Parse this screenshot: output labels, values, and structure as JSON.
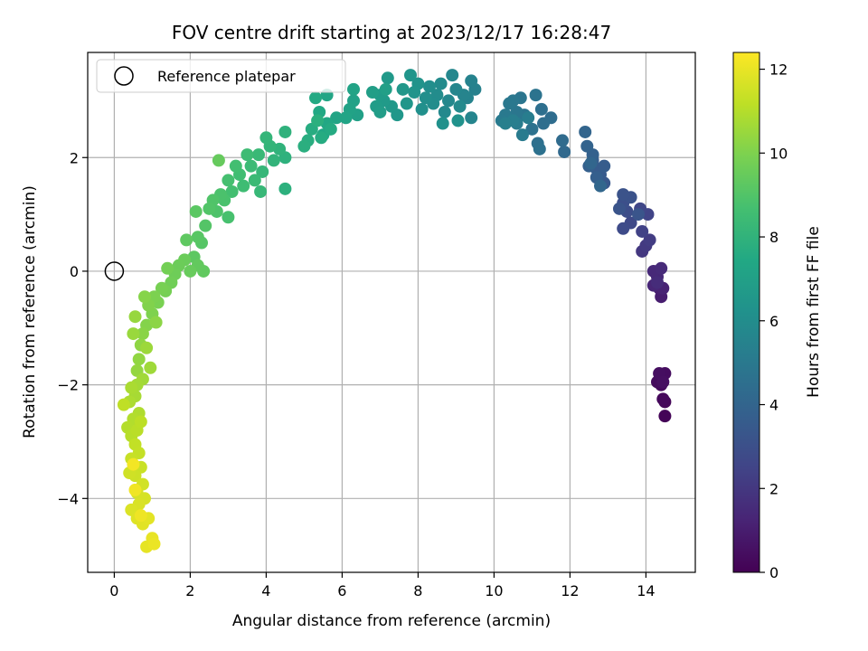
{
  "chart_data": {
    "type": "scatter",
    "title": "FOV centre drift starting at 2023/12/17 16:28:47",
    "xlabel": "Angular distance from reference (arcmin)",
    "ylabel": "Rotation from reference (arcmin)",
    "xlim": [
      -0.7,
      15.3
    ],
    "ylim": [
      -5.3,
      3.85
    ],
    "xticks": [
      0,
      2,
      4,
      6,
      8,
      10,
      12,
      14
    ],
    "yticks": [
      -4,
      -2,
      0,
      2
    ],
    "x_tick_labels": [
      "0",
      "2",
      "4",
      "6",
      "8",
      "10",
      "12",
      "14"
    ],
    "y_tick_labels": [
      "−4",
      "−2",
      "0",
      "2"
    ],
    "grid": true,
    "legend": {
      "position": "top-left",
      "label": "Reference platepar"
    },
    "reference_point": {
      "x": 0,
      "y": 0
    },
    "colorbar": {
      "label": "Hours from first FF file",
      "range": [
        0,
        12.4
      ],
      "ticks": [
        0,
        2,
        4,
        6,
        8,
        10,
        12
      ],
      "tick_labels": [
        "0",
        "2",
        "4",
        "6",
        "8",
        "10",
        "12"
      ],
      "colormap": "viridis"
    },
    "points": [
      {
        "x": 14.5,
        "y": -2.55,
        "t": 0.1
      },
      {
        "x": 14.5,
        "y": -2.3,
        "t": 0.2
      },
      {
        "x": 14.45,
        "y": -2.25,
        "t": 0.25
      },
      {
        "x": 14.4,
        "y": -2.0,
        "t": 0.3
      },
      {
        "x": 14.3,
        "y": -1.95,
        "t": 0.35
      },
      {
        "x": 14.5,
        "y": -1.8,
        "t": 0.4
      },
      {
        "x": 14.35,
        "y": -1.8,
        "t": 0.45
      },
      {
        "x": 14.45,
        "y": -1.95,
        "t": 0.5
      },
      {
        "x": 14.4,
        "y": -0.45,
        "t": 1.0
      },
      {
        "x": 14.35,
        "y": -0.3,
        "t": 1.1
      },
      {
        "x": 14.45,
        "y": -0.3,
        "t": 1.2
      },
      {
        "x": 14.2,
        "y": -0.25,
        "t": 1.3
      },
      {
        "x": 14.3,
        "y": -0.1,
        "t": 1.4
      },
      {
        "x": 14.2,
        "y": 0.0,
        "t": 1.45
      },
      {
        "x": 14.4,
        "y": 0.05,
        "t": 1.5
      },
      {
        "x": 14.3,
        "y": -0.2,
        "t": 1.55
      },
      {
        "x": 13.9,
        "y": 0.35,
        "t": 2.0
      },
      {
        "x": 14.0,
        "y": 0.45,
        "t": 2.1
      },
      {
        "x": 14.1,
        "y": 0.55,
        "t": 2.2
      },
      {
        "x": 13.9,
        "y": 0.7,
        "t": 2.4
      },
      {
        "x": 14.05,
        "y": 1.0,
        "t": 2.5
      },
      {
        "x": 13.85,
        "y": 1.1,
        "t": 2.6
      },
      {
        "x": 13.6,
        "y": 0.85,
        "t": 2.7
      },
      {
        "x": 13.4,
        "y": 0.75,
        "t": 2.8
      },
      {
        "x": 13.5,
        "y": 1.05,
        "t": 2.9
      },
      {
        "x": 13.4,
        "y": 1.2,
        "t": 3.0
      },
      {
        "x": 13.6,
        "y": 1.3,
        "t": 3.1
      },
      {
        "x": 13.4,
        "y": 1.35,
        "t": 3.15
      },
      {
        "x": 13.3,
        "y": 1.1,
        "t": 3.2
      },
      {
        "x": 13.8,
        "y": 1.0,
        "t": 3.25
      },
      {
        "x": 12.9,
        "y": 1.55,
        "t": 3.4
      },
      {
        "x": 12.8,
        "y": 1.7,
        "t": 3.5
      },
      {
        "x": 12.7,
        "y": 1.8,
        "t": 3.55
      },
      {
        "x": 12.9,
        "y": 1.85,
        "t": 3.6
      },
      {
        "x": 12.6,
        "y": 1.95,
        "t": 3.65
      },
      {
        "x": 12.7,
        "y": 1.65,
        "t": 3.7
      },
      {
        "x": 12.5,
        "y": 1.85,
        "t": 3.75
      },
      {
        "x": 12.6,
        "y": 2.05,
        "t": 3.8
      },
      {
        "x": 12.45,
        "y": 2.2,
        "t": 3.9
      },
      {
        "x": 12.4,
        "y": 2.45,
        "t": 4.0
      },
      {
        "x": 12.55,
        "y": 1.9,
        "t": 4.05
      },
      {
        "x": 12.8,
        "y": 1.5,
        "t": 4.1
      },
      {
        "x": 11.85,
        "y": 2.1,
        "t": 4.2
      },
      {
        "x": 11.8,
        "y": 2.3,
        "t": 4.3
      },
      {
        "x": 11.5,
        "y": 2.7,
        "t": 4.4
      },
      {
        "x": 11.3,
        "y": 2.6,
        "t": 4.45
      },
      {
        "x": 11.25,
        "y": 2.85,
        "t": 4.5
      },
      {
        "x": 11.15,
        "y": 2.25,
        "t": 4.55
      },
      {
        "x": 11.2,
        "y": 2.15,
        "t": 4.6
      },
      {
        "x": 11.0,
        "y": 2.5,
        "t": 4.65
      },
      {
        "x": 11.1,
        "y": 3.1,
        "t": 4.7
      },
      {
        "x": 10.8,
        "y": 2.75,
        "t": 4.75
      },
      {
        "x": 10.7,
        "y": 3.05,
        "t": 4.8
      },
      {
        "x": 10.6,
        "y": 2.8,
        "t": 4.85
      },
      {
        "x": 10.5,
        "y": 3.0,
        "t": 4.9
      },
      {
        "x": 10.4,
        "y": 2.95,
        "t": 4.95
      },
      {
        "x": 10.3,
        "y": 2.75,
        "t": 5.0
      },
      {
        "x": 10.2,
        "y": 2.65,
        "t": 5.05
      },
      {
        "x": 10.75,
        "y": 2.4,
        "t": 5.1
      },
      {
        "x": 10.6,
        "y": 2.6,
        "t": 5.15
      },
      {
        "x": 10.9,
        "y": 2.7,
        "t": 5.2
      },
      {
        "x": 10.5,
        "y": 2.65,
        "t": 5.25
      },
      {
        "x": 10.3,
        "y": 2.6,
        "t": 5.3
      },
      {
        "x": 9.5,
        "y": 3.2,
        "t": 5.4
      },
      {
        "x": 9.4,
        "y": 3.35,
        "t": 5.45
      },
      {
        "x": 9.3,
        "y": 3.05,
        "t": 5.5
      },
      {
        "x": 9.2,
        "y": 3.1,
        "t": 5.55
      },
      {
        "x": 9.4,
        "y": 2.7,
        "t": 5.6
      },
      {
        "x": 9.0,
        "y": 3.2,
        "t": 5.65
      },
      {
        "x": 8.9,
        "y": 3.45,
        "t": 5.7
      },
      {
        "x": 8.8,
        "y": 3.0,
        "t": 5.75
      },
      {
        "x": 8.7,
        "y": 2.8,
        "t": 5.8
      },
      {
        "x": 9.1,
        "y": 2.9,
        "t": 5.85
      },
      {
        "x": 8.6,
        "y": 3.3,
        "t": 5.9
      },
      {
        "x": 8.5,
        "y": 3.1,
        "t": 5.95
      },
      {
        "x": 8.4,
        "y": 2.95,
        "t": 6.0
      },
      {
        "x": 8.3,
        "y": 3.25,
        "t": 6.05
      },
      {
        "x": 8.2,
        "y": 3.05,
        "t": 6.1
      },
      {
        "x": 8.1,
        "y": 2.85,
        "t": 6.15
      },
      {
        "x": 8.65,
        "y": 2.6,
        "t": 6.2
      },
      {
        "x": 9.05,
        "y": 2.65,
        "t": 6.25
      },
      {
        "x": 8.0,
        "y": 3.3,
        "t": 6.3
      },
      {
        "x": 7.9,
        "y": 3.15,
        "t": 6.35
      },
      {
        "x": 7.8,
        "y": 3.45,
        "t": 6.4
      },
      {
        "x": 7.7,
        "y": 2.95,
        "t": 6.45
      },
      {
        "x": 7.6,
        "y": 3.2,
        "t": 6.5
      },
      {
        "x": 7.45,
        "y": 2.75,
        "t": 6.55
      },
      {
        "x": 7.3,
        "y": 2.9,
        "t": 6.6
      },
      {
        "x": 7.2,
        "y": 3.4,
        "t": 6.65
      },
      {
        "x": 7.1,
        "y": 3.0,
        "t": 6.7
      },
      {
        "x": 7.0,
        "y": 3.1,
        "t": 6.75
      },
      {
        "x": 6.9,
        "y": 2.9,
        "t": 6.8
      },
      {
        "x": 7.0,
        "y": 2.8,
        "t": 6.85
      },
      {
        "x": 6.8,
        "y": 3.15,
        "t": 6.9
      },
      {
        "x": 7.15,
        "y": 3.2,
        "t": 6.95
      },
      {
        "x": 6.4,
        "y": 2.75,
        "t": 7.0
      },
      {
        "x": 6.3,
        "y": 3.0,
        "t": 7.05
      },
      {
        "x": 6.2,
        "y": 2.85,
        "t": 7.1
      },
      {
        "x": 6.3,
        "y": 3.2,
        "t": 7.15
      },
      {
        "x": 6.1,
        "y": 2.7,
        "t": 7.2
      },
      {
        "x": 5.85,
        "y": 2.7,
        "t": 7.25
      },
      {
        "x": 5.6,
        "y": 3.1,
        "t": 7.3
      },
      {
        "x": 5.5,
        "y": 2.4,
        "t": 7.35
      },
      {
        "x": 5.6,
        "y": 2.6,
        "t": 7.4
      },
      {
        "x": 5.4,
        "y": 2.8,
        "t": 7.45
      },
      {
        "x": 5.3,
        "y": 3.05,
        "t": 7.5
      },
      {
        "x": 5.7,
        "y": 2.5,
        "t": 7.55
      },
      {
        "x": 5.45,
        "y": 2.35,
        "t": 7.6
      },
      {
        "x": 5.2,
        "y": 2.5,
        "t": 7.65
      },
      {
        "x": 5.1,
        "y": 2.3,
        "t": 7.7
      },
      {
        "x": 5.0,
        "y": 2.2,
        "t": 7.75
      },
      {
        "x": 5.35,
        "y": 2.65,
        "t": 7.8
      },
      {
        "x": 4.5,
        "y": 1.45,
        "t": 7.85
      },
      {
        "x": 4.5,
        "y": 2.0,
        "t": 7.9
      },
      {
        "x": 4.5,
        "y": 2.45,
        "t": 7.95
      },
      {
        "x": 4.35,
        "y": 2.15,
        "t": 8.0
      },
      {
        "x": 4.2,
        "y": 1.95,
        "t": 8.05
      },
      {
        "x": 4.1,
        "y": 2.2,
        "t": 8.1
      },
      {
        "x": 4.0,
        "y": 2.35,
        "t": 8.15
      },
      {
        "x": 3.9,
        "y": 1.75,
        "t": 8.2
      },
      {
        "x": 3.85,
        "y": 1.4,
        "t": 8.25
      },
      {
        "x": 3.8,
        "y": 2.05,
        "t": 8.3
      },
      {
        "x": 3.7,
        "y": 1.6,
        "t": 8.35
      },
      {
        "x": 3.6,
        "y": 1.85,
        "t": 8.4
      },
      {
        "x": 3.5,
        "y": 2.05,
        "t": 8.45
      },
      {
        "x": 3.4,
        "y": 1.5,
        "t": 8.5
      },
      {
        "x": 3.3,
        "y": 1.7,
        "t": 8.55
      },
      {
        "x": 3.2,
        "y": 1.85,
        "t": 8.6
      },
      {
        "x": 3.1,
        "y": 1.4,
        "t": 8.65
      },
      {
        "x": 3.0,
        "y": 1.6,
        "t": 8.7
      },
      {
        "x": 3.0,
        "y": 0.95,
        "t": 8.75
      },
      {
        "x": 2.9,
        "y": 1.25,
        "t": 8.8
      },
      {
        "x": 2.8,
        "y": 1.35,
        "t": 8.85
      },
      {
        "x": 2.7,
        "y": 1.05,
        "t": 8.9
      },
      {
        "x": 2.6,
        "y": 1.25,
        "t": 8.95
      },
      {
        "x": 2.5,
        "y": 1.1,
        "t": 9.0
      },
      {
        "x": 2.4,
        "y": 0.8,
        "t": 9.05
      },
      {
        "x": 2.3,
        "y": 0.5,
        "t": 9.1
      },
      {
        "x": 2.2,
        "y": 0.6,
        "t": 9.15
      },
      {
        "x": 2.15,
        "y": 1.05,
        "t": 9.2
      },
      {
        "x": 2.1,
        "y": 0.25,
        "t": 9.25
      },
      {
        "x": 1.9,
        "y": 0.55,
        "t": 9.3
      },
      {
        "x": 2.35,
        "y": 0.0,
        "t": 9.35
      },
      {
        "x": 2.2,
        "y": 0.1,
        "t": 9.4
      },
      {
        "x": 2.75,
        "y": 1.95,
        "t": 9.45
      },
      {
        "x": 2.0,
        "y": 0.0,
        "t": 9.5
      },
      {
        "x": 1.85,
        "y": 0.2,
        "t": 9.55
      },
      {
        "x": 1.7,
        "y": 0.1,
        "t": 9.6
      },
      {
        "x": 1.6,
        "y": -0.05,
        "t": 9.65
      },
      {
        "x": 1.5,
        "y": -0.2,
        "t": 9.7
      },
      {
        "x": 1.4,
        "y": 0.05,
        "t": 9.75
      },
      {
        "x": 1.35,
        "y": -0.35,
        "t": 9.8
      },
      {
        "x": 1.25,
        "y": -0.3,
        "t": 9.85
      },
      {
        "x": 1.15,
        "y": -0.55,
        "t": 9.9
      },
      {
        "x": 1.05,
        "y": -0.45,
        "t": 9.95
      },
      {
        "x": 1.0,
        "y": -0.75,
        "t": 10.0
      },
      {
        "x": 0.9,
        "y": -0.6,
        "t": 10.05
      },
      {
        "x": 0.85,
        "y": -0.95,
        "t": 10.1
      },
      {
        "x": 0.8,
        "y": -0.45,
        "t": 10.15
      },
      {
        "x": 0.75,
        "y": -1.1,
        "t": 10.2
      },
      {
        "x": 1.1,
        "y": -0.9,
        "t": 10.25
      },
      {
        "x": 0.7,
        "y": -1.3,
        "t": 10.3
      },
      {
        "x": 0.65,
        "y": -1.55,
        "t": 10.35
      },
      {
        "x": 0.6,
        "y": -1.75,
        "t": 10.4
      },
      {
        "x": 0.55,
        "y": -0.8,
        "t": 10.45
      },
      {
        "x": 0.5,
        "y": -1.1,
        "t": 10.5
      },
      {
        "x": 0.85,
        "y": -1.35,
        "t": 10.55
      },
      {
        "x": 0.95,
        "y": -1.7,
        "t": 10.6
      },
      {
        "x": 0.75,
        "y": -1.9,
        "t": 10.65
      },
      {
        "x": 0.6,
        "y": -2.0,
        "t": 10.7
      },
      {
        "x": 0.55,
        "y": -2.2,
        "t": 10.75
      },
      {
        "x": 0.45,
        "y": -2.05,
        "t": 10.8
      },
      {
        "x": 0.4,
        "y": -2.3,
        "t": 10.85
      },
      {
        "x": 0.65,
        "y": -2.5,
        "t": 10.9
      },
      {
        "x": 0.5,
        "y": -2.6,
        "t": 10.95
      },
      {
        "x": 0.35,
        "y": -2.75,
        "t": 11.0
      },
      {
        "x": 0.45,
        "y": -2.9,
        "t": 11.05
      },
      {
        "x": 0.6,
        "y": -2.8,
        "t": 11.1
      },
      {
        "x": 0.7,
        "y": -2.65,
        "t": 11.15
      },
      {
        "x": 0.25,
        "y": -2.35,
        "t": 11.2
      },
      {
        "x": 0.55,
        "y": -3.05,
        "t": 11.25
      },
      {
        "x": 0.65,
        "y": -3.2,
        "t": 11.3
      },
      {
        "x": 0.45,
        "y": -3.3,
        "t": 11.35
      },
      {
        "x": 0.7,
        "y": -3.45,
        "t": 11.4
      },
      {
        "x": 0.55,
        "y": -3.6,
        "t": 11.45
      },
      {
        "x": 0.4,
        "y": -3.55,
        "t": 11.5
      },
      {
        "x": 0.75,
        "y": -3.75,
        "t": 11.55
      },
      {
        "x": 0.6,
        "y": -3.9,
        "t": 11.6
      },
      {
        "x": 0.8,
        "y": -4.0,
        "t": 11.65
      },
      {
        "x": 0.65,
        "y": -4.1,
        "t": 11.7
      },
      {
        "x": 0.45,
        "y": -4.2,
        "t": 11.75
      },
      {
        "x": 0.6,
        "y": -4.35,
        "t": 11.8
      },
      {
        "x": 0.75,
        "y": -4.45,
        "t": 11.85
      },
      {
        "x": 0.9,
        "y": -4.35,
        "t": 11.9
      },
      {
        "x": 0.85,
        "y": -4.85,
        "t": 11.95
      },
      {
        "x": 1.0,
        "y": -4.7,
        "t": 12.0
      },
      {
        "x": 1.05,
        "y": -4.8,
        "t": 12.05
      },
      {
        "x": 0.7,
        "y": -4.3,
        "t": 12.1
      },
      {
        "x": 0.55,
        "y": -3.85,
        "t": 12.15
      },
      {
        "x": 0.5,
        "y": -3.4,
        "t": 12.2
      }
    ]
  }
}
